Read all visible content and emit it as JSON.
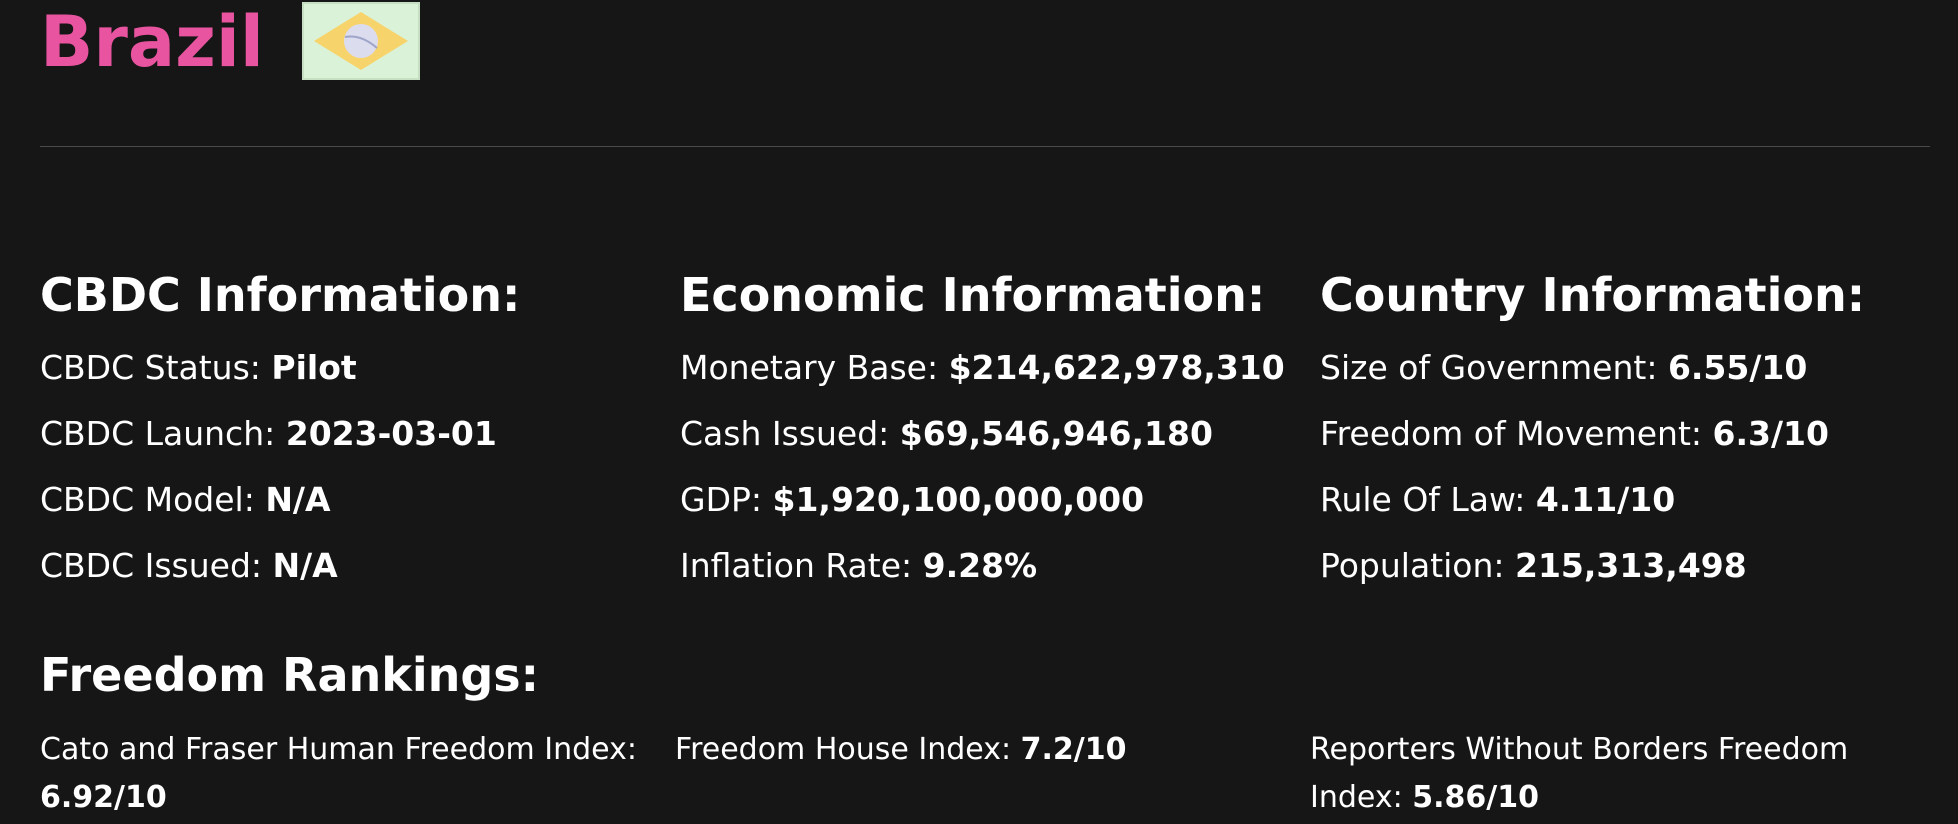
{
  "country": {
    "name": "Brazil",
    "flag_icon": "brazil-flag-icon"
  },
  "cbdc": {
    "title": "CBDC Information:",
    "rows": [
      {
        "label": "CBDC Status: ",
        "value": "Pilot"
      },
      {
        "label": "CBDC Launch: ",
        "value": "2023-03-01"
      },
      {
        "label": "CBDC Model: ",
        "value": "N/A"
      },
      {
        "label": "CBDC Issued: ",
        "value": "N/A"
      }
    ]
  },
  "economic": {
    "title": "Economic Information:",
    "rows": [
      {
        "label": "Monetary Base: ",
        "value": "$214,622,978,310"
      },
      {
        "label": "Cash Issued: ",
        "value": "$69,546,946,180"
      },
      {
        "label": "GDP: ",
        "value": "$1,920,100,000,000"
      },
      {
        "label": "Inflation Rate: ",
        "value": "9.28%"
      }
    ]
  },
  "country_info": {
    "title": "Country Information:",
    "rows": [
      {
        "label": "Size of Government: ",
        "value": "6.55/10"
      },
      {
        "label": "Freedom of Movement: ",
        "value": "6.3/10"
      },
      {
        "label": "Rule Of Law: ",
        "value": "4.11/10"
      },
      {
        "label": "Population: ",
        "value": "215,313,498"
      }
    ]
  },
  "freedom": {
    "title": "Freedom Rankings:",
    "items": [
      {
        "label": "Cato and Fraser Human Freedom Index: ",
        "value": "6.92/10"
      },
      {
        "label": "Freedom House Index: ",
        "value": "7.2/10"
      },
      {
        "label": "Reporters Without Borders Freedom Index: ",
        "value": "5.86/10"
      }
    ]
  },
  "colors": {
    "background": "#171617",
    "accent": "#e8549f",
    "text": "#ffffff"
  }
}
